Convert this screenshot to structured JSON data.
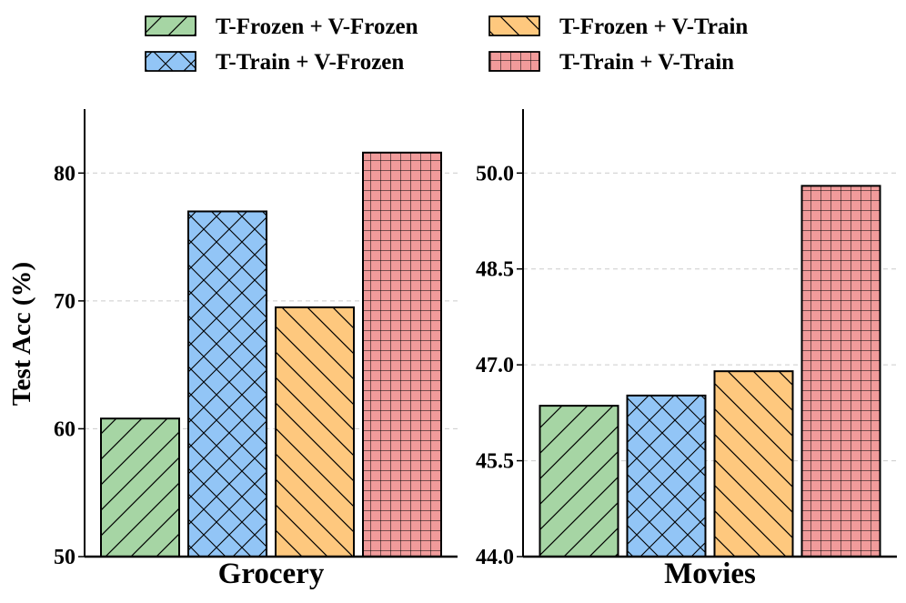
{
  "chart_data": {
    "type": "bar",
    "ylabel": "Test Acc (%)",
    "legend": {
      "placement": "top",
      "entries": [
        {
          "label": "T-Frozen + V-Frozen",
          "color": "#a6d5a4",
          "hatch": "slash"
        },
        {
          "label": "T-Frozen + V-Train",
          "color": "#fec87e",
          "hatch": "backslash"
        },
        {
          "label": "T-Train + V-Frozen",
          "color": "#92c5f6",
          "hatch": "cross"
        },
        {
          "label": "T-Train + V-Train",
          "color": "#f19b9b",
          "hatch": "grid"
        }
      ]
    },
    "series_order": [
      "T-Frozen + V-Frozen",
      "T-Train + V-Frozen",
      "T-Frozen + V-Train",
      "T-Train + V-Train"
    ],
    "panels": [
      {
        "xlabel": "Grocery",
        "ylim": [
          50,
          85
        ],
        "yticks": [
          50,
          60,
          70,
          80
        ],
        "ytick_labels": [
          "50",
          "60",
          "70",
          "80"
        ],
        "values": [
          60.8,
          77.0,
          69.5,
          81.6
        ]
      },
      {
        "xlabel": "Movies",
        "ylim": [
          44.0,
          51.0
        ],
        "yticks": [
          44.0,
          45.5,
          47.0,
          48.5,
          50.0
        ],
        "ytick_labels": [
          "44.0",
          "45.5",
          "47.0",
          "48.5",
          "50.0"
        ],
        "values": [
          46.36,
          46.52,
          46.9,
          49.8
        ]
      }
    ]
  }
}
